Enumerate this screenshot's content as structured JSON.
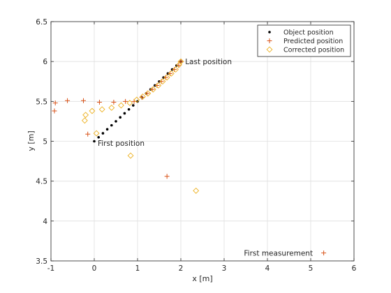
{
  "chart_data": {
    "type": "scatter",
    "xlabel": "x [m]",
    "ylabel": "y [m]",
    "xlim": [
      -1,
      6
    ],
    "ylim": [
      3.5,
      6.5
    ],
    "xticks": [
      "-1",
      "0",
      "1",
      "2",
      "3",
      "4",
      "5",
      "6"
    ],
    "yticks": [
      "3.5",
      "4",
      "4.5",
      "5",
      "5.5",
      "6",
      "6.5"
    ],
    "grid": true,
    "legend_position": "top-right",
    "series": [
      {
        "name": "Object position",
        "marker": "dot",
        "color": "#000000",
        "points": [
          [
            0.0,
            5.0
          ],
          [
            0.1,
            5.05
          ],
          [
            0.2,
            5.1
          ],
          [
            0.3,
            5.15
          ],
          [
            0.4,
            5.2
          ],
          [
            0.5,
            5.25
          ],
          [
            0.6,
            5.3
          ],
          [
            0.7,
            5.35
          ],
          [
            0.8,
            5.4
          ],
          [
            0.9,
            5.45
          ],
          [
            1.0,
            5.5
          ],
          [
            1.1,
            5.55
          ],
          [
            1.2,
            5.6
          ],
          [
            1.3,
            5.65
          ],
          [
            1.4,
            5.7
          ],
          [
            1.5,
            5.75
          ],
          [
            1.6,
            5.8
          ],
          [
            1.7,
            5.85
          ],
          [
            1.8,
            5.9
          ],
          [
            1.9,
            5.95
          ],
          [
            2.0,
            6.0
          ]
        ]
      },
      {
        "name": "Predicted position",
        "marker": "plus",
        "color": "#d95319",
        "points": [
          [
            5.3,
            3.6
          ],
          [
            1.68,
            4.56
          ],
          [
            -0.92,
            5.38
          ],
          [
            -0.9,
            5.48
          ],
          [
            -0.62,
            5.51
          ],
          [
            -0.25,
            5.51
          ],
          [
            -0.15,
            5.09
          ],
          [
            0.12,
            5.49
          ],
          [
            0.45,
            5.49
          ],
          [
            0.72,
            5.5
          ],
          [
            0.92,
            5.5
          ],
          [
            1.1,
            5.55
          ],
          [
            1.22,
            5.6
          ],
          [
            1.34,
            5.65
          ],
          [
            1.45,
            5.7
          ],
          [
            1.55,
            5.75
          ],
          [
            1.65,
            5.8
          ],
          [
            1.75,
            5.85
          ],
          [
            1.85,
            5.9
          ],
          [
            1.95,
            5.95
          ],
          [
            2.0,
            6.0
          ]
        ]
      },
      {
        "name": "Corrected position",
        "marker": "diamond",
        "color": "#edb120",
        "points": [
          [
            2.35,
            4.38
          ],
          [
            0.84,
            4.82
          ],
          [
            0.05,
            5.1
          ],
          [
            -0.22,
            5.26
          ],
          [
            -0.2,
            5.33
          ],
          [
            -0.05,
            5.38
          ],
          [
            0.18,
            5.4
          ],
          [
            0.4,
            5.42
          ],
          [
            0.62,
            5.45
          ],
          [
            0.82,
            5.48
          ],
          [
            0.98,
            5.52
          ],
          [
            1.12,
            5.56
          ],
          [
            1.24,
            5.6
          ],
          [
            1.36,
            5.65
          ],
          [
            1.48,
            5.7
          ],
          [
            1.58,
            5.75
          ],
          [
            1.68,
            5.8
          ],
          [
            1.78,
            5.85
          ],
          [
            1.88,
            5.9
          ],
          [
            1.96,
            5.96
          ],
          [
            2.0,
            6.0
          ]
        ]
      }
    ],
    "annotations": [
      {
        "text": "First position",
        "x": 0.08,
        "y": 4.98,
        "anchor": "start"
      },
      {
        "text": "Last position",
        "x": 2.1,
        "y": 6.0,
        "anchor": "start"
      },
      {
        "text": "First measurement",
        "x": 5.05,
        "y": 3.6,
        "anchor": "end"
      }
    ]
  }
}
